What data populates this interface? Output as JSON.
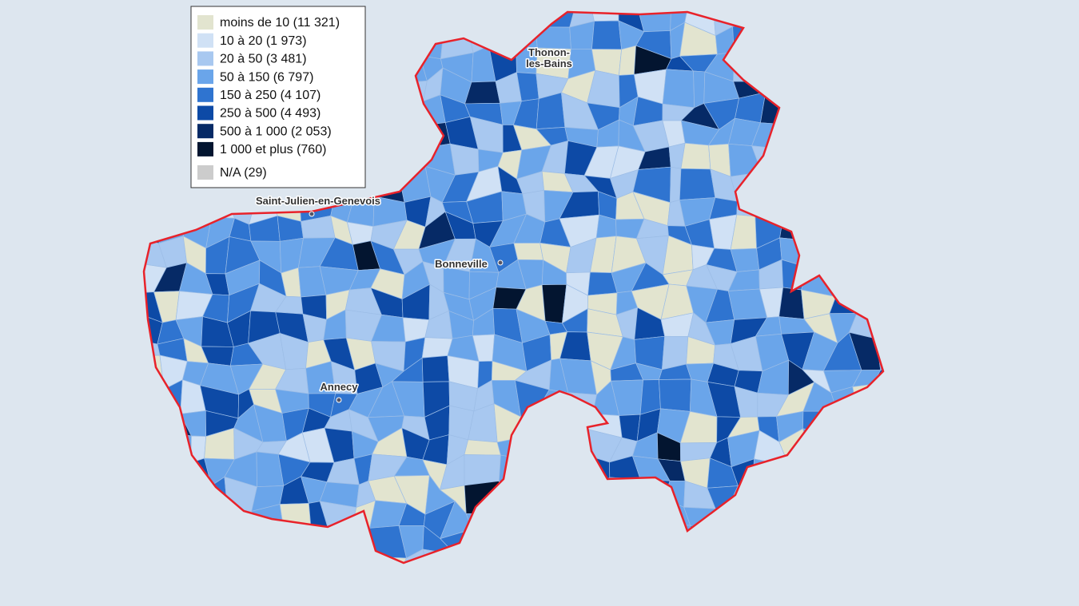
{
  "legend": {
    "items": [
      {
        "label": "moins de 10 (11 321)",
        "color": "#e2e4cf"
      },
      {
        "label": "10 à 20 (1 973)",
        "color": "#d0e1f5"
      },
      {
        "label": "20 à 50 (3 481)",
        "color": "#a8c8f0"
      },
      {
        "label": "50 à 150 (6 797)",
        "color": "#6aa5ea"
      },
      {
        "label": "150 à 250 (4 107)",
        "color": "#2f74d0"
      },
      {
        "label": "250 à 500 (4 493)",
        "color": "#0d4aa6"
      },
      {
        "label": "500 à 1 000 (2 053)",
        "color": "#062a66"
      },
      {
        "label": "1 000 et plus (760)",
        "color": "#031530"
      },
      {
        "label": "N/A (29)",
        "color": "#cccccc"
      }
    ]
  },
  "places": [
    {
      "lines": [
        "Saint-Julien-en-Genevois"
      ]
    },
    {
      "lines": [
        "Thonon-",
        "les-Bains"
      ]
    },
    {
      "lines": [
        "Bonneville"
      ]
    },
    {
      "lines": [
        "Annecy"
      ]
    }
  ]
}
